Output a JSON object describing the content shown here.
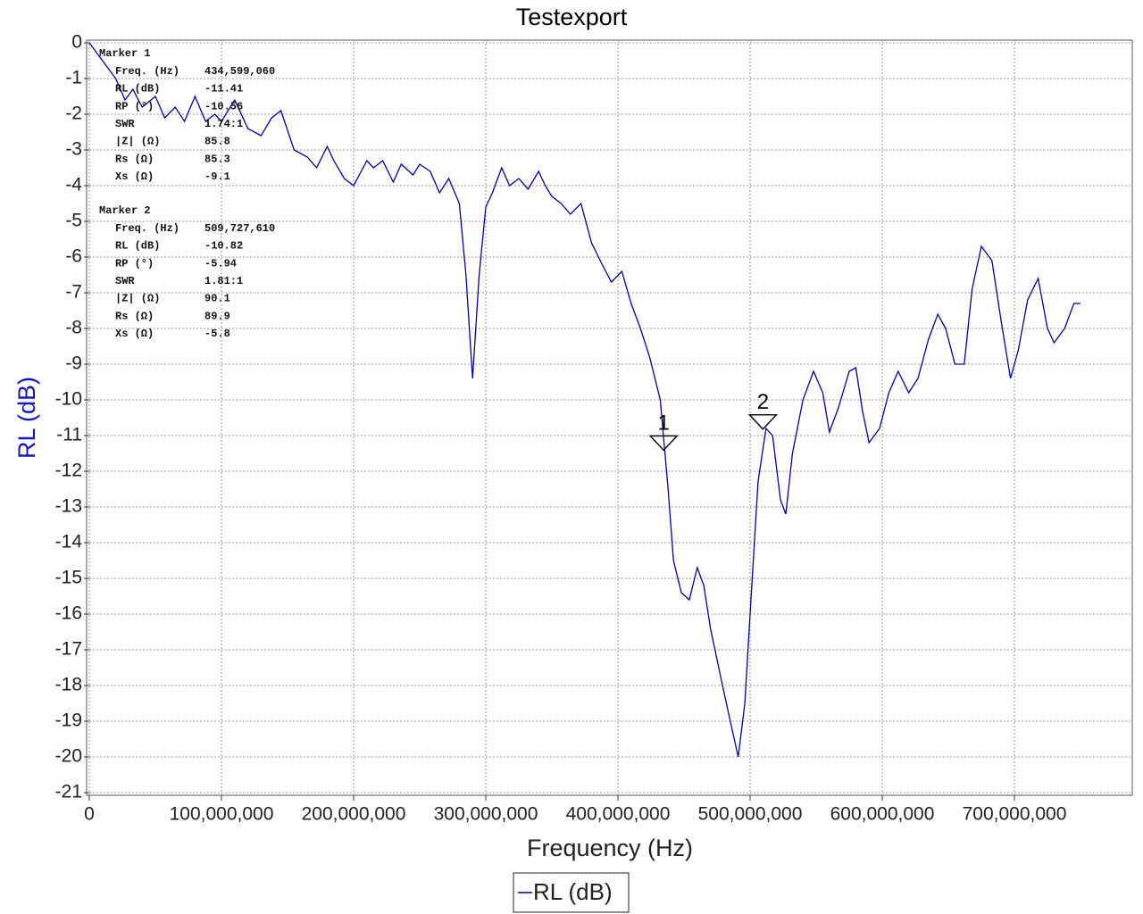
{
  "chart_data": {
    "type": "line",
    "title": "Testexport",
    "x_label": "Frequency (Hz)",
    "y_label": "RL (dB)",
    "xlim": [
      0,
      789000000
    ],
    "ylim": [
      -21,
      0
    ],
    "xticks": [
      0,
      {
        "value": 100000000,
        "label": "100,000,000"
      },
      {
        "value": 200000000,
        "label": "200,000,000"
      },
      {
        "value": 300000000,
        "label": "300,000,000"
      },
      {
        "value": 400000000,
        "label": "400,000,000"
      },
      {
        "value": 500000000,
        "label": "500,000,000"
      },
      {
        "value": 600000000,
        "label": "600,000,000"
      },
      {
        "value": 700000000,
        "label": "700,000,000"
      }
    ],
    "yticks": [
      0,
      -1,
      -2,
      -3,
      -4,
      -5,
      -6,
      -7,
      -8,
      -9,
      -10,
      -11,
      -12,
      -13,
      -14,
      -15,
      -16,
      -17,
      -18,
      -19,
      -20,
      -21
    ],
    "grid": true,
    "legend": "bottom",
    "x": [
      0,
      10000000,
      20000000,
      27000000,
      33000000,
      40000000,
      50000000,
      57000000,
      65000000,
      72000000,
      80000000,
      88000000,
      95000000,
      100000000,
      110000000,
      120000000,
      130000000,
      138000000,
      145000000,
      155000000,
      165000000,
      172000000,
      180000000,
      185000000,
      193000000,
      200000000,
      210000000,
      215000000,
      222000000,
      230000000,
      236000000,
      245000000,
      250000000,
      258000000,
      265000000,
      272000000,
      280000000,
      285000000,
      290000000,
      295000000,
      300000000,
      305000000,
      312000000,
      318000000,
      325000000,
      332000000,
      340000000,
      345000000,
      350000000,
      357000000,
      364000000,
      372000000,
      380000000,
      388000000,
      395000000,
      403000000,
      410000000,
      417000000,
      424000000,
      432000000,
      438000000,
      442000000,
      448000000,
      454000000,
      460000000,
      465000000,
      470000000,
      478000000,
      485000000,
      491000000,
      496000000,
      500000000,
      506000000,
      512000000,
      517000000,
      523000000,
      527000000,
      532000000,
      540000000,
      548000000,
      555000000,
      560000000,
      567000000,
      575000000,
      580000000,
      585000000,
      590000000,
      598000000,
      605000000,
      612000000,
      620000000,
      627000000,
      635000000,
      642000000,
      648000000,
      655000000,
      662000000,
      668000000,
      675000000,
      683000000,
      690000000,
      697000000,
      703000000,
      710000000,
      718000000,
      725000000,
      730000000,
      738000000,
      745000000,
      750000000
    ],
    "series": [
      {
        "name": "RL (dB)",
        "color": "#0000b0",
        "values": [
          0,
          -0.5,
          -1.0,
          -1.6,
          -1.3,
          -1.8,
          -1.5,
          -2.1,
          -1.8,
          -2.2,
          -1.5,
          -2.2,
          -2.0,
          -2.2,
          -1.6,
          -2.4,
          -2.6,
          -2.1,
          -1.9,
          -3.0,
          -3.2,
          -3.5,
          -2.9,
          -3.3,
          -3.8,
          -4.0,
          -3.3,
          -3.5,
          -3.3,
          -3.9,
          -3.4,
          -3.7,
          -3.4,
          -3.6,
          -4.2,
          -3.8,
          -4.5,
          -6.5,
          -9.4,
          -6.5,
          -4.6,
          -4.2,
          -3.5,
          -4.0,
          -3.8,
          -4.1,
          -3.6,
          -4.0,
          -4.3,
          -4.5,
          -4.8,
          -4.5,
          -5.6,
          -6.2,
          -6.7,
          -6.4,
          -7.3,
          -8.0,
          -8.8,
          -10.0,
          -12.5,
          -14.5,
          -15.4,
          -15.6,
          -14.7,
          -15.2,
          -16.4,
          -17.8,
          -19.0,
          -20.0,
          -18.5,
          -16.0,
          -12.3,
          -10.8,
          -11.0,
          -12.8,
          -13.2,
          -11.5,
          -10.0,
          -9.2,
          -9.8,
          -10.9,
          -10.2,
          -9.2,
          -9.1,
          -10.3,
          -11.2,
          -10.8,
          -9.8,
          -9.2,
          -9.8,
          -9.4,
          -8.3,
          -7.6,
          -8.0,
          -9.0,
          -9.0,
          -6.9,
          -5.7,
          -6.1,
          -7.8,
          -9.4,
          -8.6,
          -7.2,
          -6.6,
          -8.0,
          -8.4,
          -8.0,
          -7.3,
          -7.3
        ]
      }
    ],
    "markers": [
      {
        "title": "Marker 1",
        "label": "1",
        "x": 434599060,
        "y": -11.41,
        "rows": [
          [
            "Freq. (Hz)",
            "434,599,060"
          ],
          [
            "RL (dB)",
            "-11.41"
          ],
          [
            "RP (°)",
            "-10.56"
          ],
          [
            "SWR",
            "1.74:1"
          ],
          [
            "|Z| (Ω)",
            "85.8"
          ],
          [
            "Rs (Ω)",
            "85.3"
          ],
          [
            "Xs (Ω)",
            "-9.1"
          ]
        ]
      },
      {
        "title": "Marker 2",
        "label": "2",
        "x": 509727610,
        "y": -10.82,
        "rows": [
          [
            "Freq. (Hz)",
            "509,727,610"
          ],
          [
            "RL (dB)",
            "-10.82"
          ],
          [
            "RP (°)",
            "-5.94"
          ],
          [
            "SWR",
            "1.81:1"
          ],
          [
            "|Z| (Ω)",
            "90.1"
          ],
          [
            "Rs (Ω)",
            "89.9"
          ],
          [
            "Xs (Ω)",
            "-5.8"
          ]
        ]
      }
    ]
  }
}
